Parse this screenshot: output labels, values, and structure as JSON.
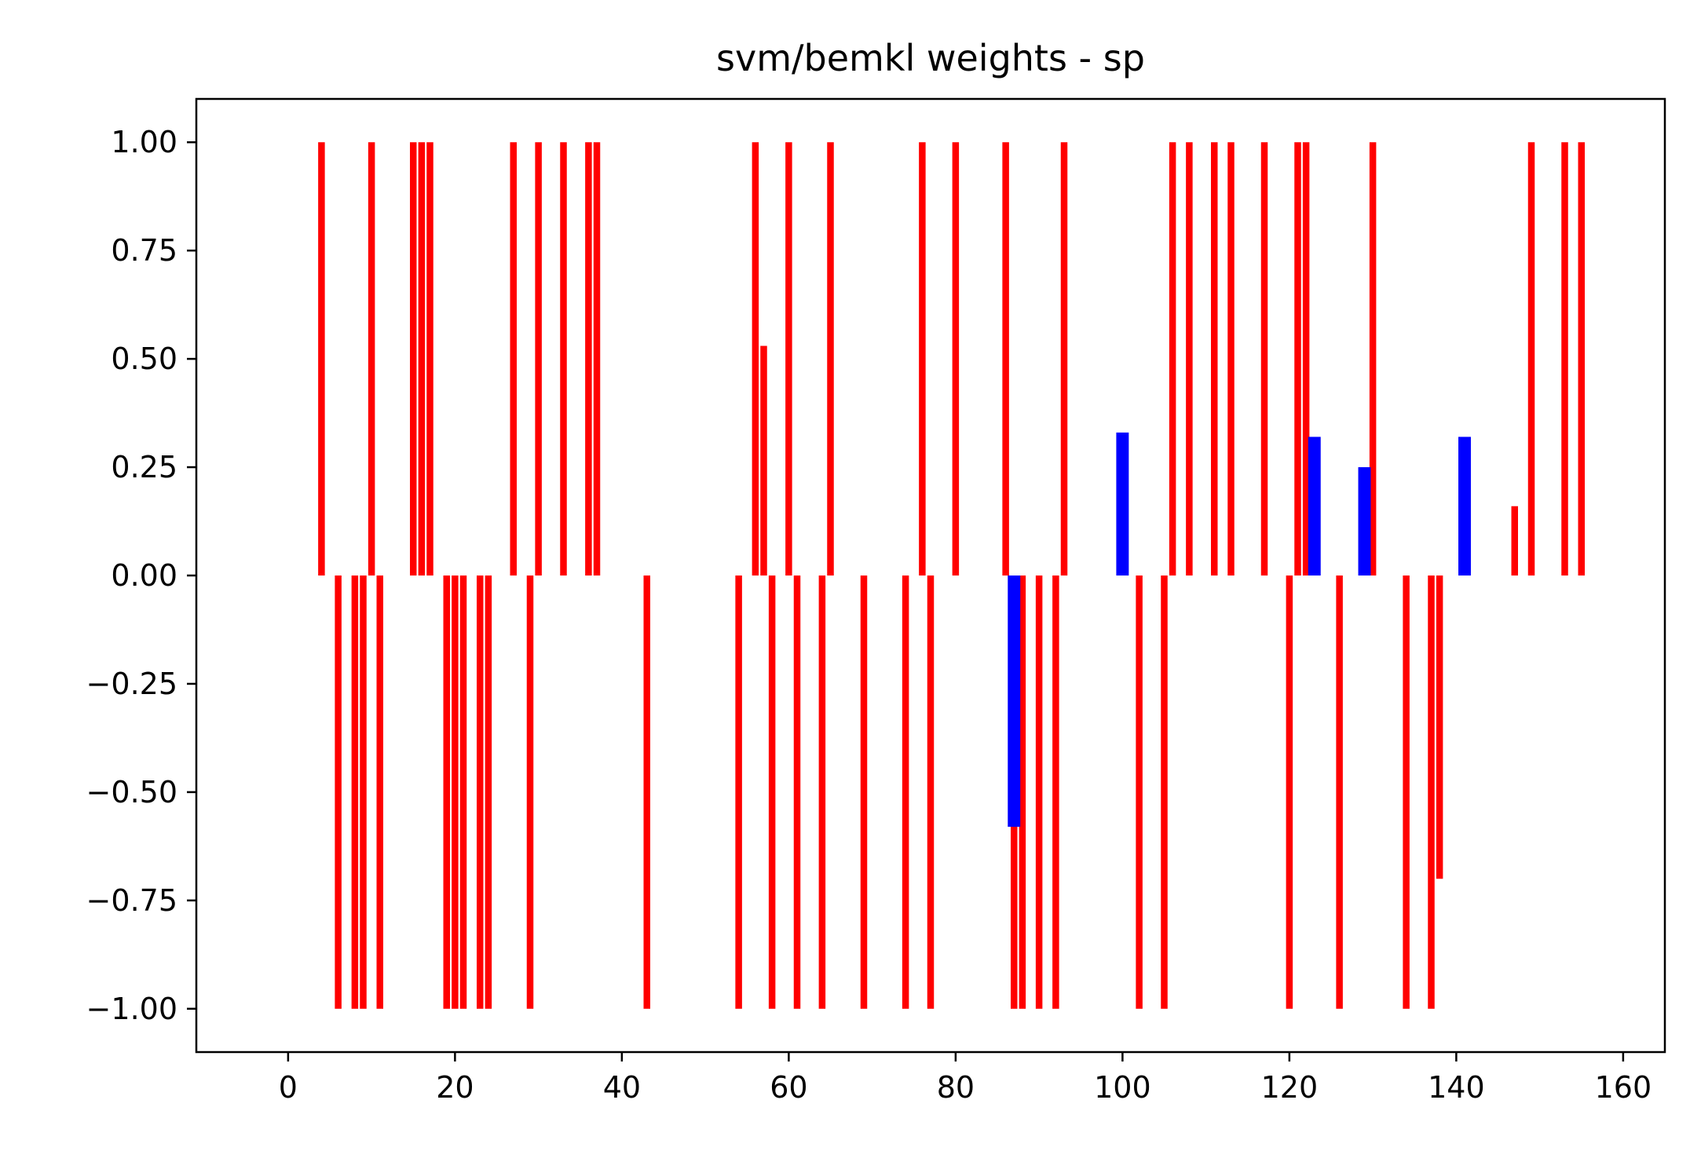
{
  "chart_data": {
    "type": "bar",
    "title": "svm/bemkl weights - sp",
    "xlabel": "",
    "ylabel": "",
    "xlim": [
      -11,
      165
    ],
    "ylim": [
      -1.1,
      1.1
    ],
    "xticks": [
      0,
      20,
      40,
      60,
      80,
      100,
      120,
      140,
      160
    ],
    "xtick_labels": [
      "0",
      "20",
      "40",
      "60",
      "80",
      "100",
      "120",
      "140",
      "160"
    ],
    "yticks": [
      1.0,
      0.75,
      0.5,
      0.25,
      0.0,
      -0.25,
      -0.5,
      -0.75,
      -1.0
    ],
    "ytick_labels": [
      "1.00",
      "0.75",
      "0.50",
      "0.25",
      "0.00",
      "−0.25",
      "−0.50",
      "−0.75",
      "−1.00"
    ],
    "grid": false,
    "legend": "none",
    "series": [
      {
        "color": "#ff0000",
        "bar_width": 0.8,
        "x": [
          4,
          6,
          8,
          9,
          10,
          11,
          15,
          16,
          17,
          19,
          20,
          21,
          23,
          24,
          27,
          29,
          30,
          33,
          36,
          37,
          43,
          54,
          56,
          57,
          58,
          60,
          61,
          64,
          65,
          69,
          74,
          76,
          77,
          80,
          86,
          87,
          88,
          90,
          92,
          93,
          102,
          105,
          106,
          108,
          111,
          113,
          117,
          120,
          121,
          122,
          126,
          130,
          134,
          137,
          138,
          147,
          149,
          153,
          155
        ],
        "values": [
          1,
          -1,
          -1,
          -1,
          1,
          -1,
          1,
          1,
          1,
          -1,
          -1,
          -1,
          -1,
          -1,
          1,
          -1,
          1,
          1,
          1,
          1,
          -1,
          -1,
          1,
          0.53,
          -1,
          1,
          -1,
          -1,
          1,
          -1,
          -1,
          1,
          -1,
          1,
          1,
          -1,
          -1,
          -1,
          -1,
          1,
          -1,
          -1,
          1,
          1,
          1,
          1,
          1,
          -1,
          1,
          1,
          -1,
          1,
          -1,
          -1,
          -0.7,
          0.16,
          1,
          1,
          1
        ]
      },
      {
        "color": "#0000ff",
        "bar_width": 1.5,
        "x": [
          87,
          100,
          123,
          129,
          141
        ],
        "values": [
          -0.58,
          0.33,
          0.32,
          0.25,
          0.32
        ]
      }
    ]
  }
}
